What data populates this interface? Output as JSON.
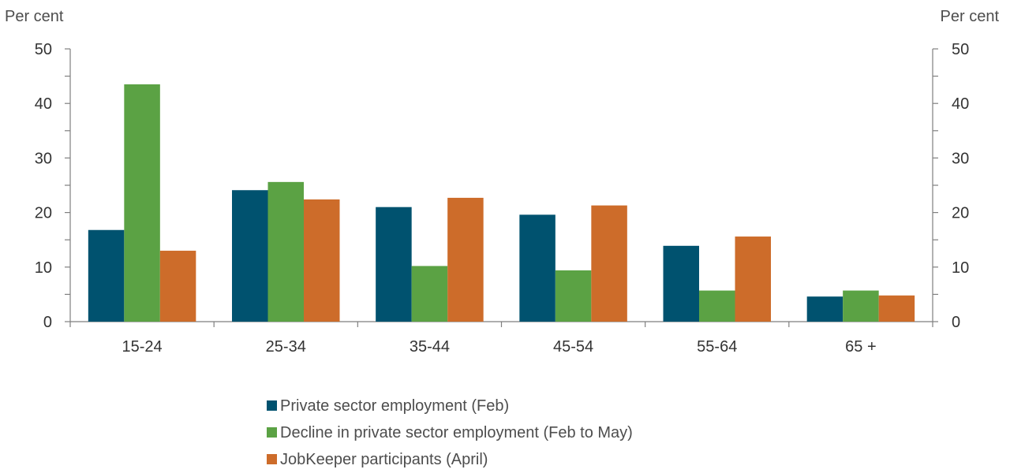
{
  "chart_data": {
    "type": "bar",
    "title": "",
    "y_unit_left": "Per cent",
    "y_unit_right": "Per cent",
    "ylim": [
      0,
      50
    ],
    "yticks": [
      0,
      10,
      20,
      30,
      40,
      50
    ],
    "minor_tick_step": 5,
    "grid": false,
    "legend_position": "bottom",
    "categories": [
      "15-24",
      "25-34",
      "35-44",
      "45-54",
      "55-64",
      "65 +"
    ],
    "series": [
      {
        "name": "Private sector employment (Feb)",
        "color": "#00526f",
        "values": [
          16.8,
          24.1,
          21.0,
          19.6,
          13.9,
          4.6
        ]
      },
      {
        "name": "Decline in private sector employment (Feb to May)",
        "color": "#5ba244",
        "values": [
          43.5,
          25.6,
          10.2,
          9.4,
          5.7,
          5.7
        ]
      },
      {
        "name": "JobKeeper participants (April)",
        "color": "#cd6c2a",
        "values": [
          13.0,
          22.4,
          22.7,
          21.3,
          15.6,
          4.8
        ]
      }
    ]
  }
}
